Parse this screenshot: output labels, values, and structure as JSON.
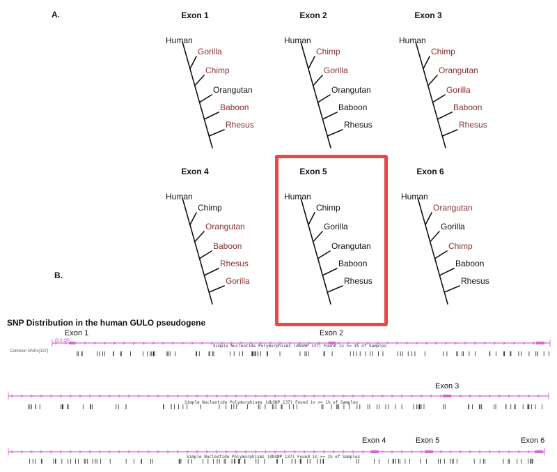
{
  "panel_a_label": "A.",
  "panel_b_label": "B.",
  "trees": [
    {
      "title": "Exon 1",
      "species": [
        {
          "name": "Human",
          "color": "black"
        },
        {
          "name": "Gorilla",
          "color": "red"
        },
        {
          "name": "Chimp",
          "color": "red"
        },
        {
          "name": "Orangutan",
          "color": "black"
        },
        {
          "name": "Baboon",
          "color": "red"
        },
        {
          "name": "Rhesus",
          "color": "red"
        }
      ]
    },
    {
      "title": "Exon 2",
      "species": [
        {
          "name": "Human",
          "color": "black"
        },
        {
          "name": "Chimp",
          "color": "red"
        },
        {
          "name": "Gorilla",
          "color": "red"
        },
        {
          "name": "Orangutan",
          "color": "black"
        },
        {
          "name": "Baboon",
          "color": "black"
        },
        {
          "name": "Rhesus",
          "color": "black"
        }
      ]
    },
    {
      "title": "Exon 3",
      "species": [
        {
          "name": "Human",
          "color": "black"
        },
        {
          "name": "Chimp",
          "color": "red"
        },
        {
          "name": "Orangutan",
          "color": "red"
        },
        {
          "name": "Gorilla",
          "color": "red"
        },
        {
          "name": "Baboon",
          "color": "red"
        },
        {
          "name": "Rhesus",
          "color": "red"
        }
      ]
    },
    {
      "title": "Exon 4",
      "species": [
        {
          "name": "Human",
          "color": "black"
        },
        {
          "name": "Chimp",
          "color": "black"
        },
        {
          "name": "Orangutan",
          "color": "red"
        },
        {
          "name": "Baboon",
          "color": "red"
        },
        {
          "name": "Rhesus",
          "color": "red"
        },
        {
          "name": "Gorilla",
          "color": "red"
        }
      ]
    },
    {
      "title": "Exon 5",
      "species": [
        {
          "name": "Human",
          "color": "black"
        },
        {
          "name": "Chimp",
          "color": "black"
        },
        {
          "name": "Gorilla",
          "color": "black"
        },
        {
          "name": "Orangutan",
          "color": "black"
        },
        {
          "name": "Baboon",
          "color": "black"
        },
        {
          "name": "Rhesus",
          "color": "black"
        }
      ]
    },
    {
      "title": "Exon 6",
      "species": [
        {
          "name": "Human",
          "color": "black"
        },
        {
          "name": "Orangutan",
          "color": "red"
        },
        {
          "name": "Gorilla",
          "color": "black"
        },
        {
          "name": "Chimp",
          "color": "red"
        },
        {
          "name": "Baboon",
          "color": "black"
        },
        {
          "name": "Rhesus",
          "color": "black"
        }
      ]
    }
  ],
  "colors": {
    "red_label": "#8b2e2e",
    "highlight": "#e94848",
    "track": "#d966d9"
  },
  "snp": {
    "title": "SNP Distribution in the human GULO pseudogene",
    "row1": {
      "gene_label": "GULOP",
      "side_label": "Common SNPs(137)",
      "caption": "Simple Nucleotide Polymorphisms (dbSNP 137) Found in >= 1% of Samples",
      "exons": [
        "Exon 1",
        "Exon 2"
      ]
    },
    "row2": {
      "caption": "Simple Nucleotide Polymorphisms (dbSNP 137) Found in >= 1% of Samples",
      "exons": [
        "Exon 3"
      ]
    },
    "row3": {
      "caption": "Simple Nucleotide Polymorphisms (dbSNP 137) Found in >= 1% of Samples",
      "exons": [
        "Exon 4",
        "Exon 5",
        "Exon 6"
      ]
    }
  }
}
